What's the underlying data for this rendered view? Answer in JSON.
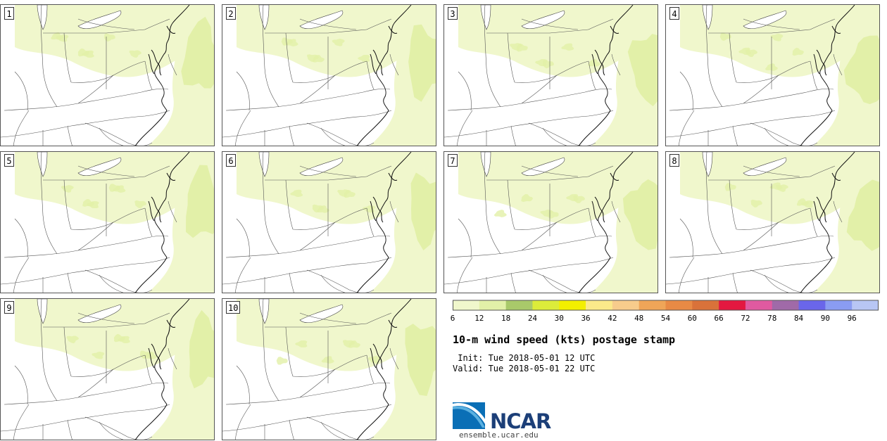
{
  "panels": [
    {
      "label": "1"
    },
    {
      "label": "2"
    },
    {
      "label": "3"
    },
    {
      "label": "4"
    },
    {
      "label": "5"
    },
    {
      "label": "6"
    },
    {
      "label": "7"
    },
    {
      "label": "8"
    },
    {
      "label": "9"
    },
    {
      "label": "10"
    }
  ],
  "colorbar": {
    "ticks": [
      "6",
      "12",
      "18",
      "24",
      "30",
      "36",
      "42",
      "48",
      "54",
      "60",
      "66",
      "72",
      "78",
      "84",
      "90",
      "96"
    ],
    "colors": [
      "#f0f7cc",
      "#e2f0a8",
      "#a9c96a",
      "#dcec3a",
      "#f3ef00",
      "#fbe98a",
      "#f7cc8c",
      "#efa558",
      "#e88a45",
      "#d9723a",
      "#e31840",
      "#e05aa0",
      "#a06aa8",
      "#6a66ea",
      "#8a9cf2",
      "#b8c6f4"
    ]
  },
  "title": "10-m wind speed (kts) postage stamp",
  "init": " Init: Tue 2018-05-01 12 UTC",
  "valid": "Valid: Tue 2018-05-01 22 UTC",
  "logo": {
    "name": "NCAR",
    "url_text": "ensemble.ucar.edu"
  }
}
